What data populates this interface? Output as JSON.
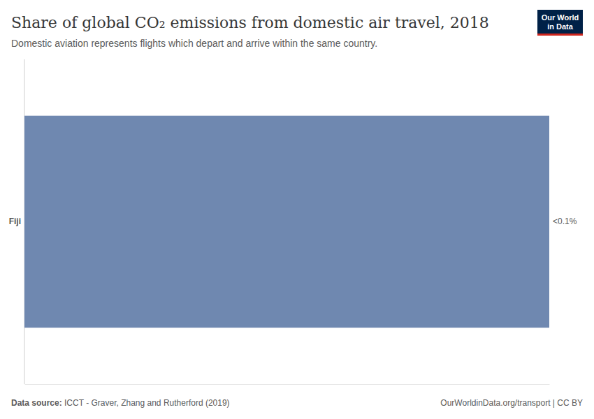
{
  "chart_data": {
    "type": "bar",
    "orientation": "horizontal",
    "title": "Share of global CO₂ emissions from domestic air travel, 2018",
    "subtitle": "Domestic aviation represents flights which depart and arrive within the same country.",
    "categories": [
      "Fiji"
    ],
    "values": [
      0.04
    ],
    "value_labels": [
      "<0.1%"
    ],
    "color": "#6f88b0",
    "data_labels": true,
    "tick_labels": "y",
    "grid": true,
    "xlim": [
      0,
      0.04
    ],
    "xticks": [
      0
    ],
    "source_label": "Data source:",
    "source": "ICCT - Graver, Zhang and Rutherford (2019)",
    "footer_right": "OurWorldinData.org/transport | CC BY",
    "logo": [
      "Our World",
      "in Data"
    ]
  }
}
